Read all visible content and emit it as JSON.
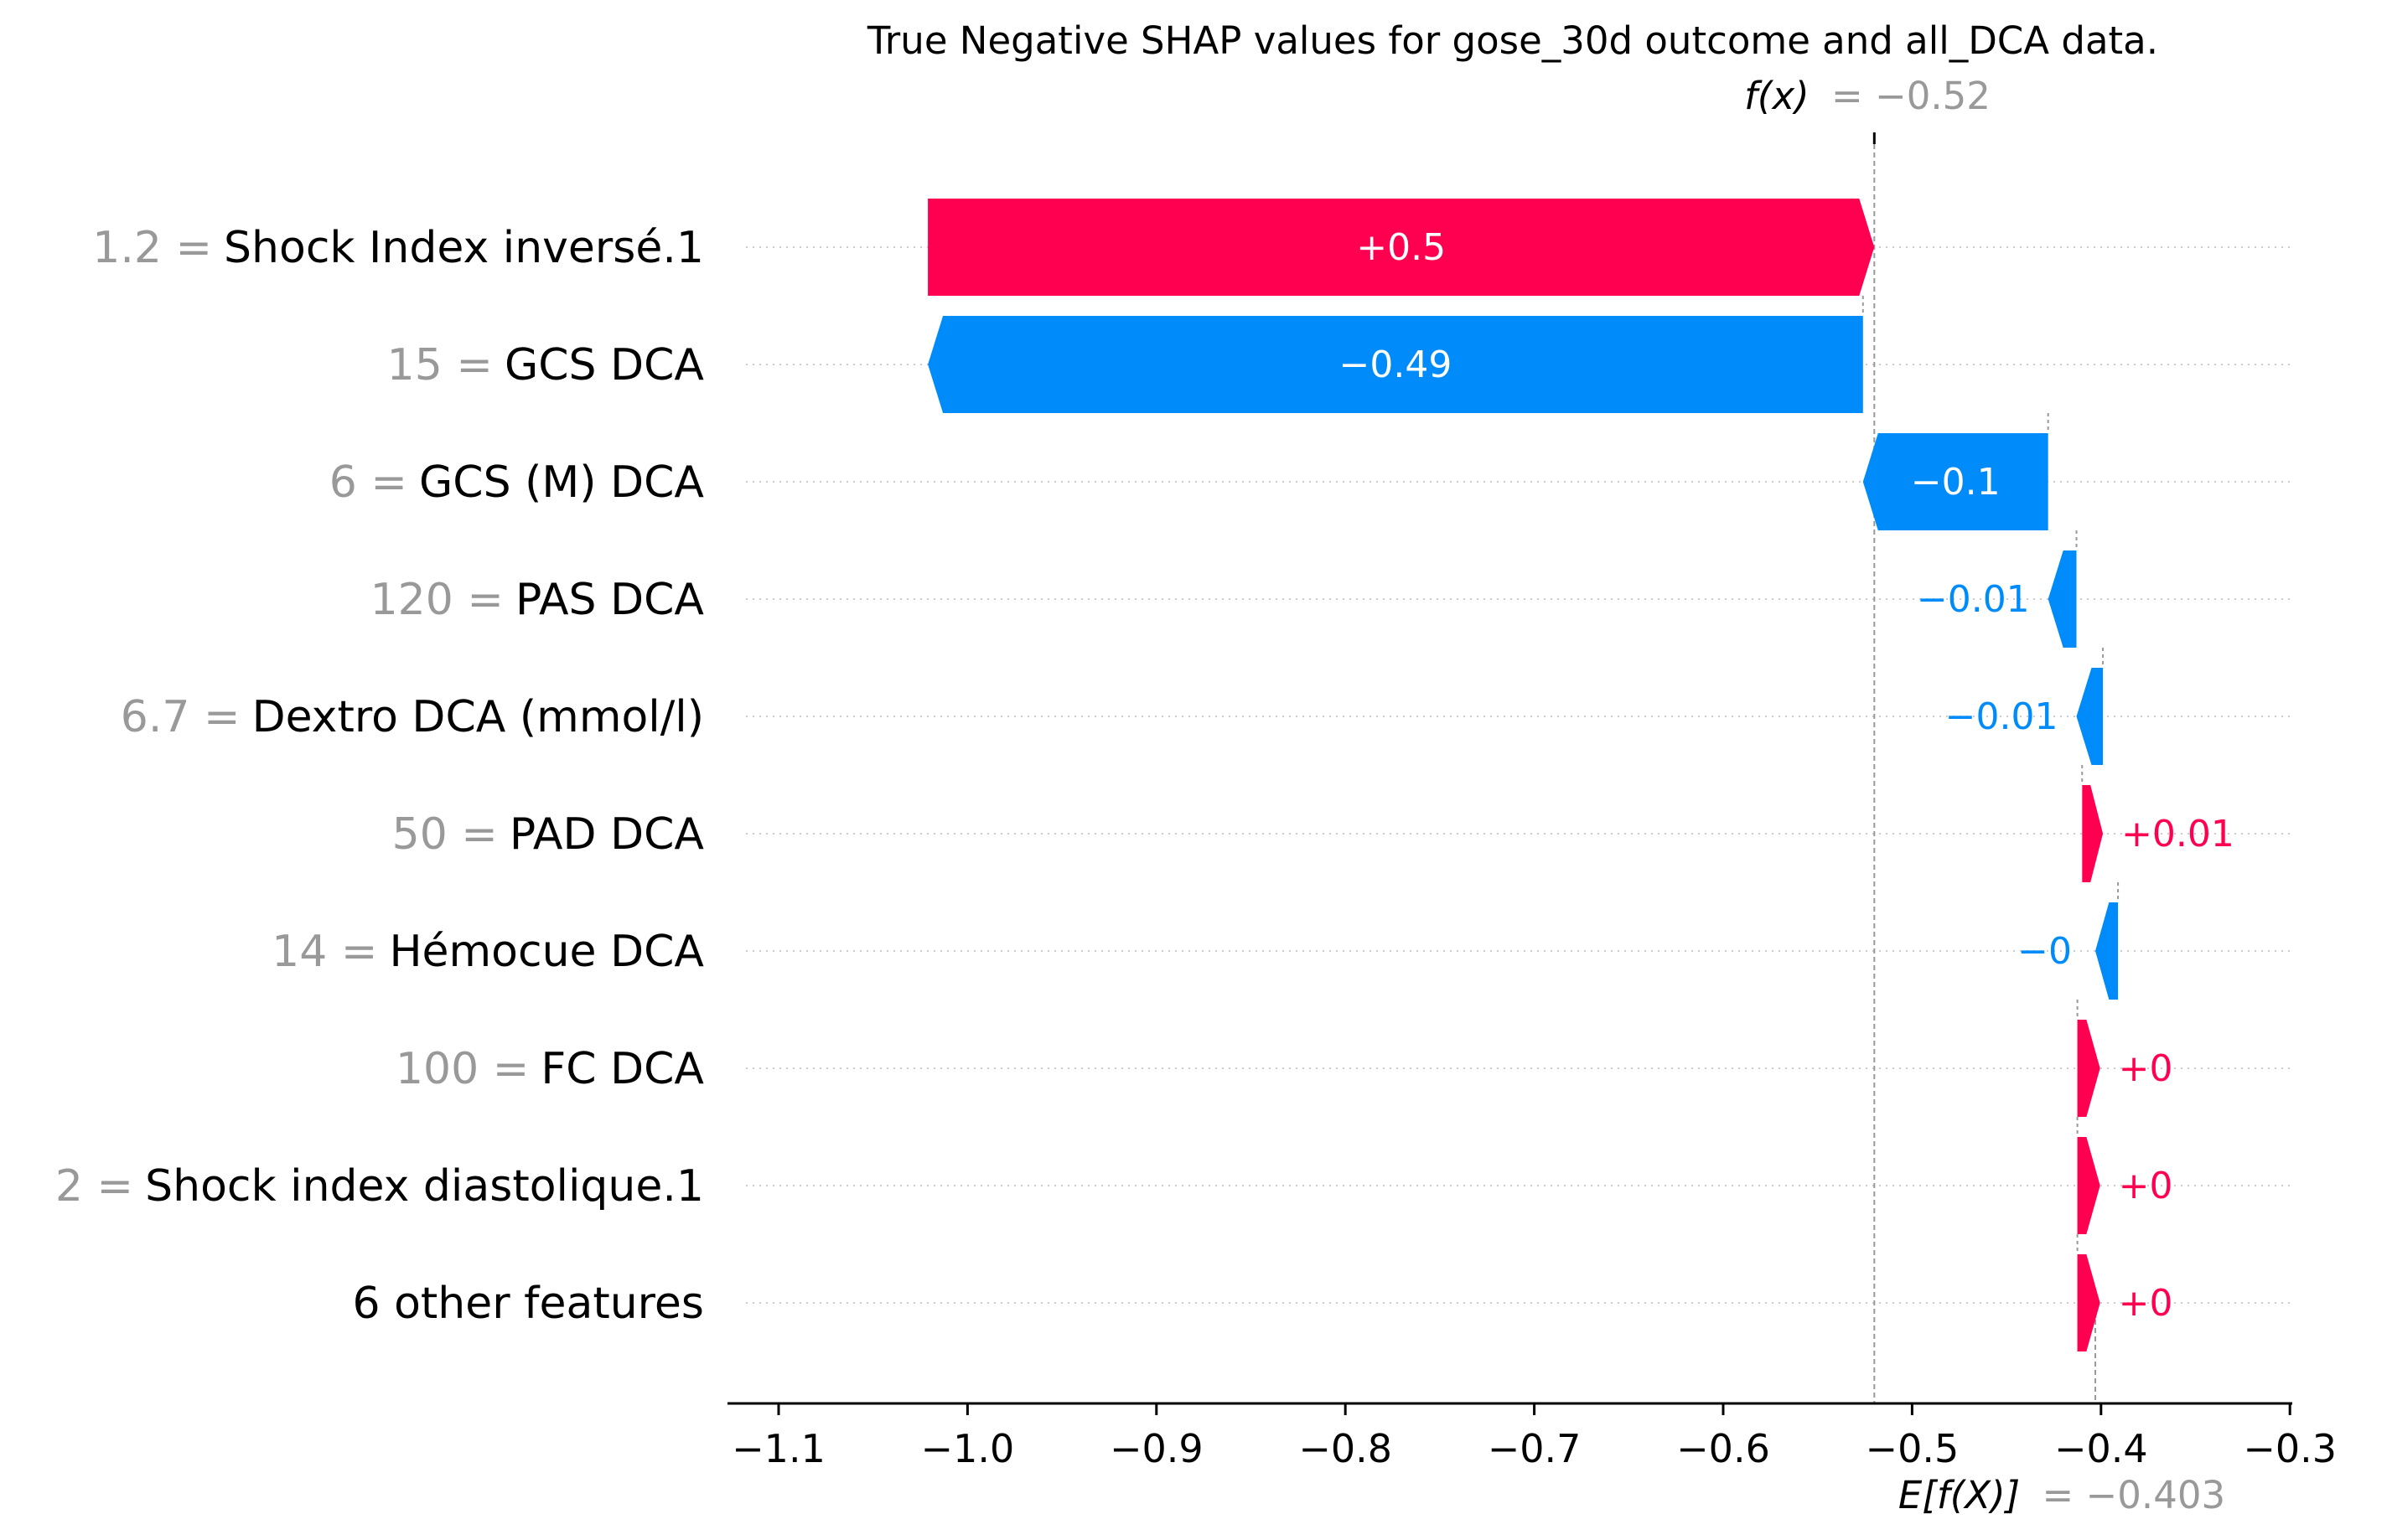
{
  "chart_data": {
    "type": "waterfall",
    "title": "True Negative SHAP values for gose_30d outcome and all_DCA data.",
    "fx": {
      "label": "f(x)",
      "value_text": "= −0.52",
      "value": -0.52
    },
    "efx": {
      "label": "E[f(X)]",
      "value_text": "= −0.403",
      "value": -0.403
    },
    "xlim": [
      -1.125,
      -0.3
    ],
    "xticks": [
      {
        "value": -1.1,
        "label": "−1.1"
      },
      {
        "value": -1.0,
        "label": "−1.0"
      },
      {
        "value": -0.9,
        "label": "−0.9"
      },
      {
        "value": -0.8,
        "label": "−0.8"
      },
      {
        "value": -0.7,
        "label": "−0.7"
      },
      {
        "value": -0.6,
        "label": "−0.6"
      },
      {
        "value": -0.5,
        "label": "−0.5"
      },
      {
        "value": -0.4,
        "label": "−0.4"
      },
      {
        "value": -0.3,
        "label": "−0.3"
      }
    ],
    "features": [
      {
        "value_label": "1.2 =",
        "name": "Shock Index inversé.1",
        "shap": 0.5,
        "start": -1.021,
        "end": -0.52,
        "label": "+0.5"
      },
      {
        "value_label": "15 =",
        "name": "GCS DCA",
        "shap": -0.49,
        "start": -0.526,
        "end": -1.021,
        "label": "−0.49"
      },
      {
        "value_label": "6 =",
        "name": "GCS (M) DCA",
        "shap": -0.1,
        "start": -0.428,
        "end": -0.526,
        "label": "−0.1"
      },
      {
        "value_label": "120 =",
        "name": "PAS DCA",
        "shap": -0.01,
        "start": -0.413,
        "end": -0.428,
        "label": "−0.01"
      },
      {
        "value_label": "6.7 =",
        "name": "Dextro DCA (mmol/l)",
        "shap": -0.01,
        "start": -0.399,
        "end": -0.413,
        "label": "−0.01"
      },
      {
        "value_label": "50 =",
        "name": "PAD DCA",
        "shap": 0.01,
        "start": -0.41,
        "end": -0.399,
        "label": "+0.01"
      },
      {
        "value_label": "14 =",
        "name": "Hémocue DCA",
        "shap": -0.0,
        "start": -0.391,
        "end": -0.403,
        "label": "−0"
      },
      {
        "value_label": "100 =",
        "name": "FC  DCA",
        "shap": 0.0,
        "start": -0.4125,
        "end": -0.4005,
        "label": "+0"
      },
      {
        "value_label": "2 =",
        "name": "Shock index diastolique.1",
        "shap": 0.0,
        "start": -0.4125,
        "end": -0.4005,
        "label": "+0"
      },
      {
        "value_label": "",
        "name": "6 other features",
        "shap": 0.0,
        "start": -0.4125,
        "end": -0.4005,
        "label": "+0"
      }
    ],
    "colors": {
      "positive": "#ff0051",
      "negative": "#008bfb",
      "muted": "#999999",
      "text": "#000000"
    }
  }
}
